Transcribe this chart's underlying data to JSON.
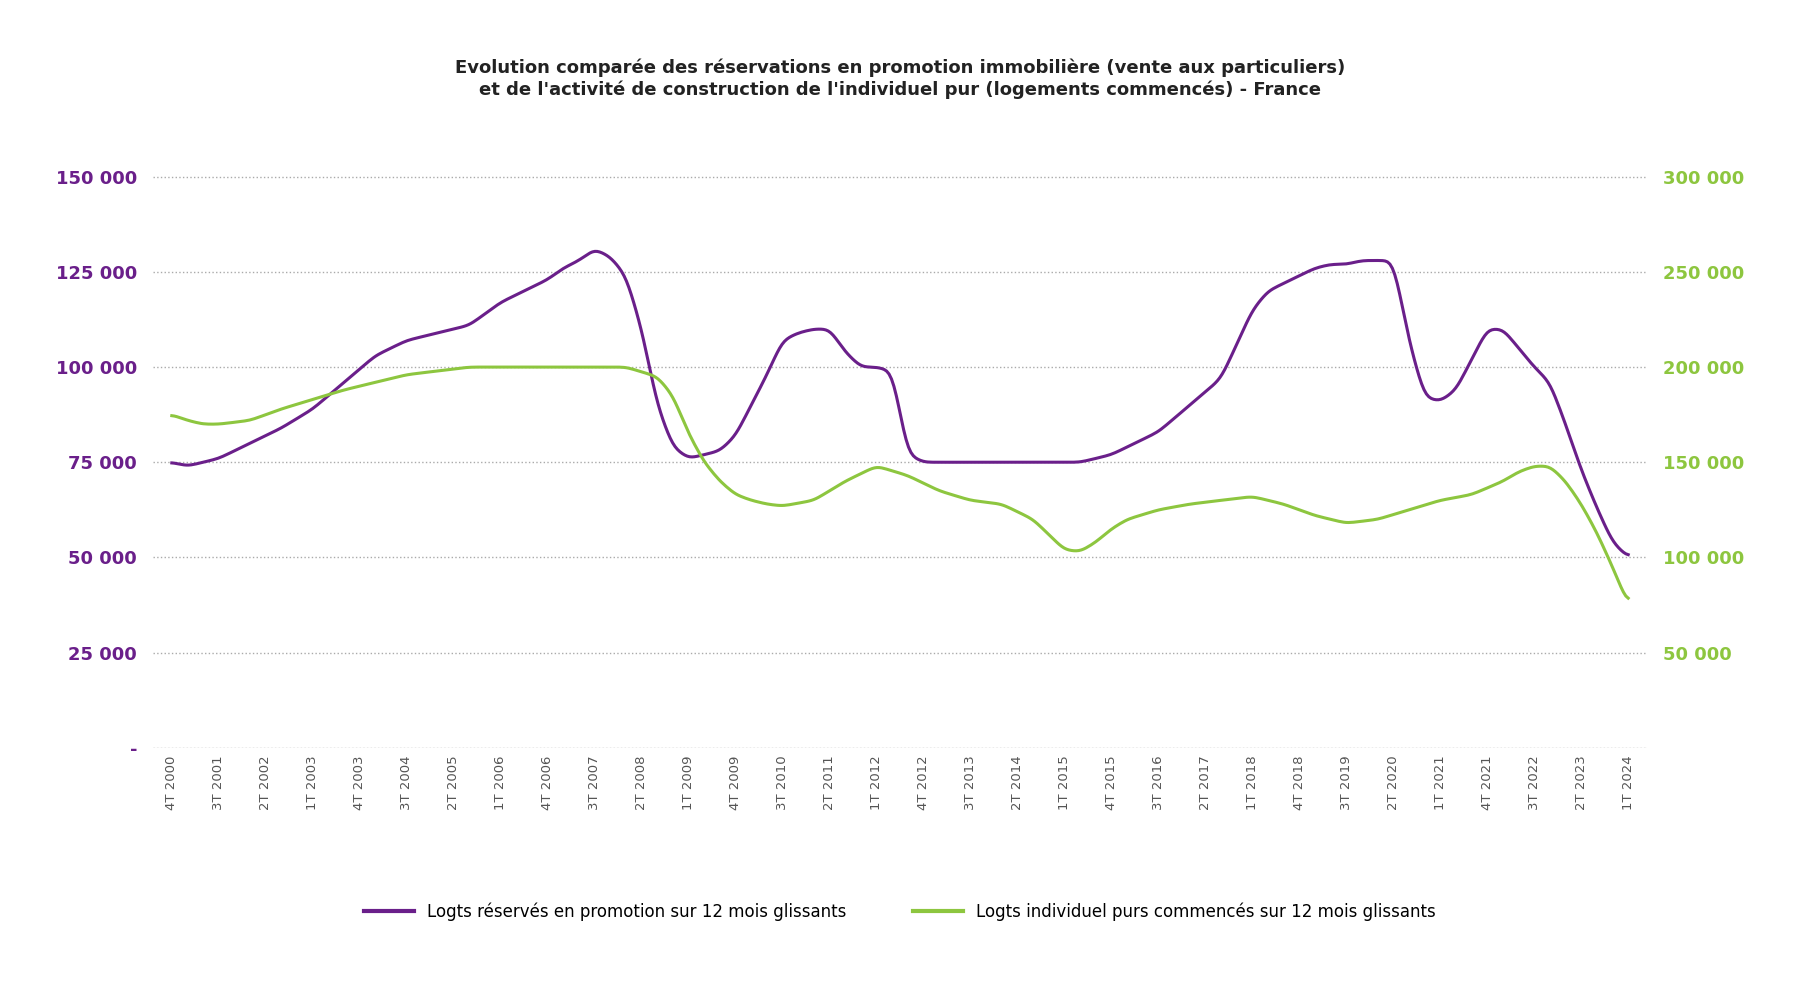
{
  "title_line1": "Evolution comparée des réservations en promotion immobilière (vente aux particuliers)",
  "title_line2": "et de l'activité de construction de l'individuel pur (logements commencés) - France",
  "left_color": "#6A1F8A",
  "right_color": "#8DC63F",
  "background_color": "#FFFFFF",
  "grid_color": "#AAAAAA",
  "left_ylim": [
    0,
    165000
  ],
  "right_ylim": [
    0,
    330000
  ],
  "left_yticks": [
    0,
    25000,
    50000,
    75000,
    100000,
    125000,
    150000
  ],
  "right_yticks": [
    0,
    50000,
    100000,
    150000,
    200000,
    250000,
    300000
  ],
  "left_ytick_labels": [
    "-",
    "25 000",
    "50 000",
    "75 000",
    "100 000",
    "125 000",
    "150 000"
  ],
  "right_ytick_labels": [
    "",
    "50 000",
    "100 000",
    "150 000",
    "200 000",
    "250 000",
    "300 000"
  ],
  "legend1": "Logts réservés en promotion sur 12 mois glissants",
  "legend2": "Logts individuel purs commencés sur 12 mois glissants",
  "xtick_labels": [
    "4T 2000",
    "3T 2001",
    "2T 2002",
    "1T 2003",
    "4T 2003",
    "3T 2004",
    "2T 2005",
    "1T 2006",
    "4T 2006",
    "3T 2007",
    "2T 2008",
    "1T 2009",
    "4T 2009",
    "3T 2010",
    "2T 2011",
    "1T 2012",
    "4T 2012",
    "3T 2013",
    "2T 2014",
    "1T 2015",
    "4T 2015",
    "3T 2016",
    "2T 2017",
    "1T 2018",
    "4T 2018",
    "3T 2019",
    "2T 2020",
    "1T 2021",
    "4T 2021",
    "3T 2022",
    "2T 2023",
    "1T 2024"
  ],
  "purple_keypoints_x": [
    2000.75,
    2001.0,
    2001.5,
    2002.0,
    2002.5,
    2003.0,
    2003.5,
    2004.0,
    2004.5,
    2005.0,
    2005.5,
    2006.0,
    2006.25,
    2006.5,
    2006.75,
    2007.0,
    2007.25,
    2007.5,
    2007.75,
    2008.0,
    2008.25,
    2008.5,
    2008.75,
    2009.0,
    2009.25,
    2009.5,
    2009.75,
    2010.0,
    2010.25,
    2010.5,
    2010.75,
    2011.0,
    2011.25,
    2011.5,
    2011.75,
    2012.0,
    2012.25,
    2012.5,
    2012.75,
    2013.0,
    2013.5,
    2014.0,
    2014.5,
    2015.0,
    2015.25,
    2015.5,
    2015.75,
    2016.0,
    2016.5,
    2017.0,
    2017.5,
    2018.0,
    2018.25,
    2018.5,
    2018.75,
    2019.0,
    2019.25,
    2019.5,
    2019.75,
    2020.0,
    2020.25,
    2020.5,
    2020.75,
    2021.0,
    2021.25,
    2021.5,
    2021.75,
    2022.0,
    2022.25,
    2022.5,
    2022.75,
    2023.0,
    2023.25,
    2023.5,
    2023.75,
    2024.0
  ],
  "purple_keypoints_y": [
    75000,
    74000,
    76000,
    80000,
    84000,
    89000,
    96000,
    103000,
    107000,
    109000,
    111000,
    117000,
    119000,
    121000,
    123000,
    126000,
    128000,
    131000,
    129000,
    124000,
    110000,
    90000,
    79000,
    76000,
    77000,
    78000,
    82000,
    90000,
    98000,
    107000,
    109000,
    110000,
    110000,
    104000,
    100000,
    100000,
    99000,
    77000,
    75000,
    75000,
    75000,
    75000,
    75000,
    75000,
    75000,
    76000,
    77000,
    79000,
    83000,
    90000,
    97000,
    115000,
    120000,
    122000,
    124000,
    126000,
    127000,
    127000,
    128000,
    128000,
    128000,
    107000,
    92000,
    91000,
    94000,
    102000,
    110000,
    110000,
    105000,
    100000,
    96000,
    85000,
    73000,
    63000,
    54000,
    50000
  ],
  "green_keypoints_x": [
    2000.75,
    2001.0,
    2001.25,
    2001.5,
    2002.0,
    2002.5,
    2003.0,
    2003.5,
    2004.0,
    2004.5,
    2005.0,
    2005.5,
    2006.0,
    2006.5,
    2007.0,
    2007.5,
    2008.0,
    2008.5,
    2008.75,
    2009.0,
    2009.25,
    2009.5,
    2009.75,
    2010.0,
    2010.25,
    2010.5,
    2011.0,
    2011.5,
    2012.0,
    2012.5,
    2013.0,
    2013.5,
    2014.0,
    2014.5,
    2015.0,
    2015.25,
    2015.5,
    2015.75,
    2016.0,
    2016.5,
    2017.0,
    2017.5,
    2018.0,
    2018.5,
    2019.0,
    2019.5,
    2020.0,
    2020.5,
    2021.0,
    2021.5,
    2022.0,
    2022.25,
    2022.5,
    2022.75,
    2023.0,
    2023.25,
    2023.5,
    2023.75,
    2024.0
  ],
  "green_keypoints_y": [
    175000,
    172000,
    170000,
    170000,
    172000,
    178000,
    183000,
    188000,
    192000,
    196000,
    198000,
    200000,
    200000,
    200000,
    200000,
    200000,
    200000,
    195000,
    185000,
    165000,
    150000,
    140000,
    133000,
    130000,
    128000,
    127000,
    130000,
    140000,
    148000,
    143000,
    135000,
    130000,
    128000,
    120000,
    104000,
    103000,
    108000,
    115000,
    120000,
    125000,
    128000,
    130000,
    132000,
    128000,
    122000,
    118000,
    120000,
    125000,
    130000,
    133000,
    140000,
    145000,
    148000,
    148000,
    140000,
    128000,
    113000,
    95000,
    75000
  ]
}
